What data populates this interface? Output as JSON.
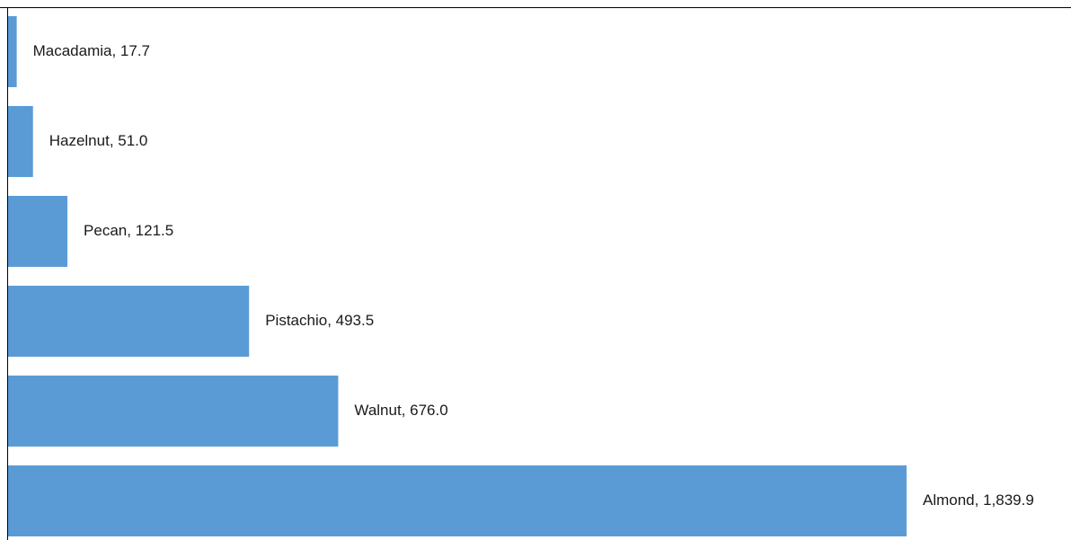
{
  "chart_data": {
    "type": "bar",
    "orientation": "horizontal",
    "values": [
      17.7,
      51.0,
      121.5,
      493.5,
      676.0,
      1839.9
    ],
    "value_labels": [
      "Macadamia,  17.7",
      "Hazelnut,  51.0",
      "Pecan,  121.5",
      "Pistachio,  493.5",
      "Walnut,  676.0",
      "Almond,  1,839.9"
    ],
    "color": "#5b9bd5"
  }
}
